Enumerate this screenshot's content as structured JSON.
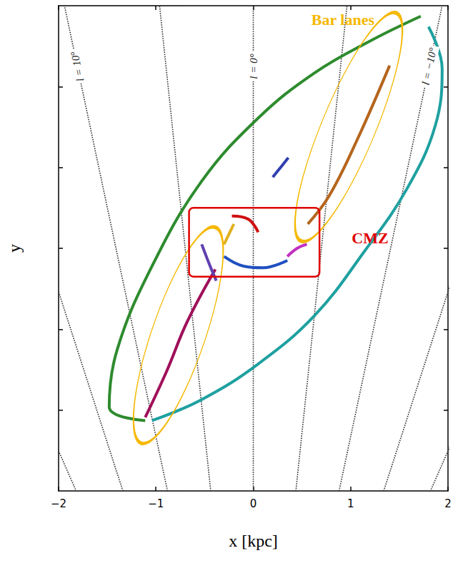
{
  "chart_data": {
    "type": "line",
    "xlabel": "x [kpc]",
    "ylabel": "y",
    "xlim": [
      -2,
      2
    ],
    "xticks": [
      {
        "value": -2,
        "label": "−2"
      },
      {
        "value": -1,
        "label": "−1"
      },
      0,
      1,
      2
    ],
    "ylim": [
      -3,
      3
    ],
    "yticks": [
      -2,
      -1,
      0,
      1,
      2
    ],
    "tick_labels": "x",
    "grid": false,
    "series": [
      {
        "color": "#2e8b2e",
        "x": [
          -1.11,
          -1.48,
          -1.4,
          -1.04,
          -0.53,
          0.05,
          0.63,
          1.21,
          1.72
        ],
        "values": [
          -2.13,
          -1.96,
          -1.26,
          -0.22,
          0.83,
          1.61,
          2.17,
          2.57,
          2.87
        ]
      },
      {
        "color": "#1fa0a0",
        "x": [
          1.8,
          1.94,
          1.87,
          1.58,
          1.14,
          0.63,
          0.05,
          -0.53,
          -1.04
        ],
        "values": [
          2.74,
          2.22,
          1.52,
          0.74,
          -0.04,
          -0.83,
          -1.43,
          -1.87,
          -2.13
        ]
      },
      {
        "color": "#b5651d",
        "x": [
          1.4,
          1.07,
          0.78,
          0.56
        ],
        "values": [
          2.26,
          1.35,
          0.65,
          0.3
        ]
      },
      {
        "color": "#a0105a",
        "x": [
          -0.39,
          -0.68,
          -0.89,
          -1.11
        ],
        "values": [
          -0.26,
          -0.91,
          -1.52,
          -2.09
        ]
      },
      {
        "color": "#6040b0",
        "x": [
          -0.53,
          -0.45,
          -0.38
        ],
        "values": [
          0.05,
          -0.2,
          -0.4
        ]
      },
      {
        "color": "#d01010",
        "x": [
          -0.22,
          -0.05,
          0.05
        ],
        "values": [
          0.4,
          0.36,
          0.2
        ]
      },
      {
        "color": "#e0b020",
        "x": [
          -0.2,
          -0.26,
          -0.3
        ],
        "values": [
          0.3,
          0.15,
          0.05
        ]
      },
      {
        "color": "#2050c0",
        "x": [
          -0.3,
          -0.1,
          0.1,
          0.35
        ],
        "values": [
          -0.1,
          -0.22,
          -0.24,
          -0.15
        ]
      },
      {
        "color": "#c030c0",
        "x": [
          0.35,
          0.45,
          0.55
        ],
        "values": [
          -0.1,
          0.0,
          0.05
        ]
      },
      {
        "color": "#3040b0",
        "x": [
          0.2,
          0.28,
          0.36
        ],
        "values": [
          0.88,
          1.0,
          1.12
        ]
      }
    ],
    "longitude_lines": {
      "sun": [
        0,
        -8
      ],
      "lines": [
        {
          "l": 20
        },
        {
          "l": 15
        },
        {
          "l": 10,
          "label": "l = 10°"
        },
        {
          "l": 5
        },
        {
          "l": 0,
          "label": "l = 0°"
        },
        {
          "l": -5
        },
        {
          "l": -10,
          "label": "l = −10°"
        },
        {
          "l": -15
        },
        {
          "l": -20
        }
      ]
    },
    "regions": [
      {
        "shape": "ellipse",
        "color": "#f5b800",
        "ends": [
          [
            0.49,
            0.09
          ],
          [
            1.47,
            2.91
          ]
        ],
        "width": 0.55
      },
      {
        "shape": "ellipse",
        "color": "#f5b800",
        "ends": [
          [
            -0.39,
            0.26
          ],
          [
            -1.15,
            -2.41
          ]
        ],
        "width": 0.55
      },
      {
        "shape": "rect",
        "color": "#e00000",
        "xlim": [
          -0.66,
          0.68
        ],
        "ylim": [
          -0.35,
          0.5
        ]
      }
    ],
    "annotations": [
      {
        "text": "Bar lanes",
        "color": "#f5b800",
        "at": [
          0.92,
          2.83
        ]
      },
      {
        "text": "CMZ",
        "color": "#e00000",
        "at": [
          1.2,
          0.13
        ]
      }
    ]
  }
}
